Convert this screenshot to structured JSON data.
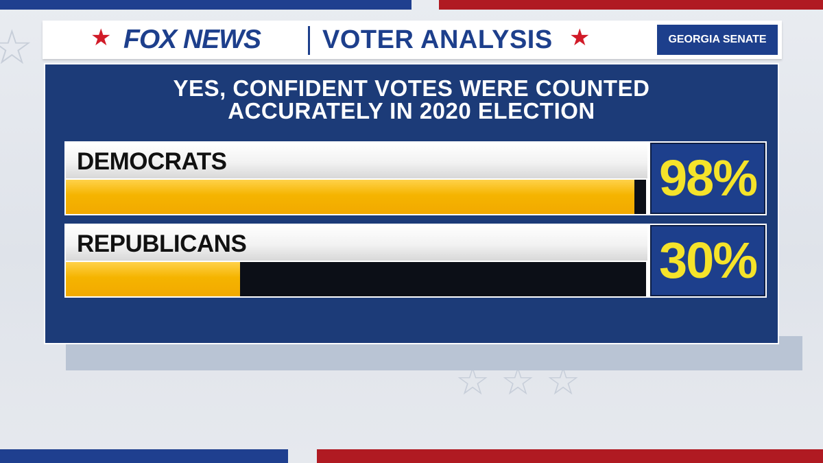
{
  "header": {
    "brand": "FOX NEWS",
    "title": "VOTER ANALYSIS",
    "badge": "GEORGIA SENATE"
  },
  "colors": {
    "panel": "#1c3b78",
    "brand_blue": "#1d3f8c",
    "accent_red": "#d11b28",
    "bar_fill": "#f5b400",
    "value_text": "#f5e32a"
  },
  "chart_data": {
    "type": "bar",
    "orientation": "horizontal",
    "title": "YES, CONFIDENT VOTES WERE COUNTED ACCURATELY IN 2020 ELECTION",
    "title_lines": [
      "YES, CONFIDENT VOTES WERE COUNTED",
      "ACCURATELY IN 2020 ELECTION"
    ],
    "categories": [
      "DEMOCRATS",
      "REPUBLICANS"
    ],
    "values": [
      98,
      30
    ],
    "value_labels": [
      "98%",
      "30%"
    ],
    "unit": "%",
    "xlim": [
      0,
      100
    ],
    "grid": false,
    "legend": "none"
  }
}
